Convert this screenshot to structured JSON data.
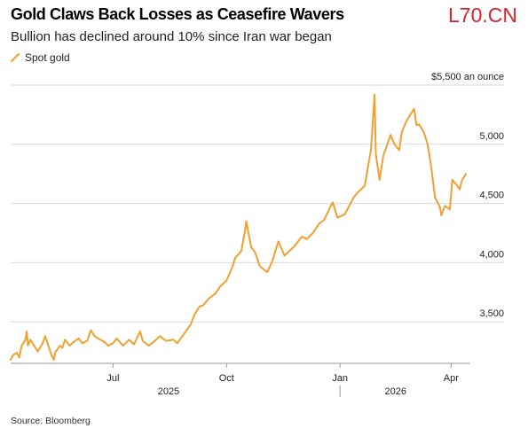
{
  "watermark": "L70.CN",
  "source": "Source: Bloomberg",
  "colors": {
    "series": "#f0a030",
    "grid": "#d9d9d9",
    "axis": "#999999",
    "watermark": "#d8232a"
  },
  "chart_data": {
    "type": "line",
    "title": "Gold Claws Back Losses as Ceasefire Wavers",
    "subtitle": "Bullion has declined around 10% since Iran war began",
    "legend": [
      {
        "name": "Spot gold",
        "color": "#f0a030"
      }
    ],
    "y_unit_label": "$5,500 an ounce",
    "yaxis": {
      "ticks": [
        3500,
        4000,
        4500,
        5000,
        5500
      ],
      "tick_labels": [
        "3,500",
        "4,000",
        "4,500",
        "5,000",
        ""
      ],
      "range": [
        3150,
        5500
      ],
      "position": "right",
      "grid": true
    },
    "xaxis": {
      "tick_labels": [
        "Jul",
        "Oct",
        "Jan",
        "Apr"
      ],
      "year_labels": [
        "2025",
        "2026"
      ],
      "range": [
        "2025-04-09",
        "2026-04-13"
      ]
    },
    "series": [
      {
        "name": "Spot gold",
        "x": [
          "2025-04-09",
          "2025-04-11",
          "2025-04-14",
          "2025-04-16",
          "2025-04-18",
          "2025-04-21",
          "2025-04-22",
          "2025-04-23",
          "2025-04-25",
          "2025-04-28",
          "2025-05-01",
          "2025-05-05",
          "2025-05-07",
          "2025-05-09",
          "2025-05-12",
          "2025-05-14",
          "2025-05-15",
          "2025-05-19",
          "2025-05-21",
          "2025-05-23",
          "2025-05-27",
          "2025-05-30",
          "2025-06-03",
          "2025-06-06",
          "2025-06-10",
          "2025-06-13",
          "2025-06-16",
          "2025-06-19",
          "2025-06-24",
          "2025-06-27",
          "2025-07-01",
          "2025-07-04",
          "2025-07-09",
          "2025-07-14",
          "2025-07-18",
          "2025-07-23",
          "2025-07-25",
          "2025-07-30",
          "2025-08-05",
          "2025-08-08",
          "2025-08-13",
          "2025-08-19",
          "2025-08-22",
          "2025-08-27",
          "2025-09-02",
          "2025-09-05",
          "2025-09-09",
          "2025-09-12",
          "2025-09-17",
          "2025-09-22",
          "2025-09-26",
          "2025-10-01",
          "2025-10-06",
          "2025-10-08",
          "2025-10-13",
          "2025-10-16",
          "2025-10-17",
          "2025-10-21",
          "2025-10-24",
          "2025-10-28",
          "2025-11-03",
          "2025-11-07",
          "2025-11-12",
          "2025-11-17",
          "2025-11-21",
          "2025-11-26",
          "2025-12-01",
          "2025-12-05",
          "2025-12-10",
          "2025-12-15",
          "2025-12-19",
          "2025-12-26",
          "2025-12-30",
          "2026-01-05",
          "2026-01-08",
          "2026-01-12",
          "2026-01-16",
          "2026-01-21",
          "2026-01-26",
          "2026-01-29",
          "2026-01-30",
          "2026-02-02",
          "2026-02-05",
          "2026-02-09",
          "2026-02-11",
          "2026-02-14",
          "2026-02-18",
          "2026-02-20",
          "2026-02-24",
          "2026-02-27",
          "2026-03-02",
          "2026-03-04",
          "2026-03-06",
          "2026-03-10",
          "2026-03-13",
          "2026-03-16",
          "2026-03-19",
          "2026-03-23",
          "2026-03-24",
          "2026-03-27",
          "2026-03-31",
          "2026-04-02",
          "2026-04-06",
          "2026-04-08",
          "2026-04-10",
          "2026-04-13"
        ],
        "values": [
          3180,
          3220,
          3240,
          3200,
          3300,
          3350,
          3420,
          3300,
          3350,
          3300,
          3250,
          3320,
          3380,
          3320,
          3220,
          3180,
          3240,
          3300,
          3280,
          3350,
          3300,
          3330,
          3360,
          3320,
          3340,
          3430,
          3380,
          3360,
          3330,
          3300,
          3320,
          3360,
          3300,
          3350,
          3310,
          3420,
          3340,
          3300,
          3350,
          3380,
          3340,
          3350,
          3320,
          3390,
          3480,
          3560,
          3630,
          3640,
          3700,
          3740,
          3800,
          3850,
          3970,
          4040,
          4100,
          4270,
          4350,
          4130,
          4090,
          3970,
          3920,
          4010,
          4180,
          4060,
          4100,
          4150,
          4220,
          4200,
          4250,
          4330,
          4360,
          4510,
          4380,
          4410,
          4470,
          4550,
          4600,
          4650,
          4950,
          5420,
          4920,
          4700,
          4900,
          5020,
          5080,
          5000,
          4950,
          5100,
          5200,
          5250,
          5300,
          5160,
          5170,
          5100,
          5000,
          4800,
          4550,
          4470,
          4400,
          4480,
          4450,
          4700,
          4650,
          4620,
          4700,
          4750
        ]
      }
    ]
  }
}
